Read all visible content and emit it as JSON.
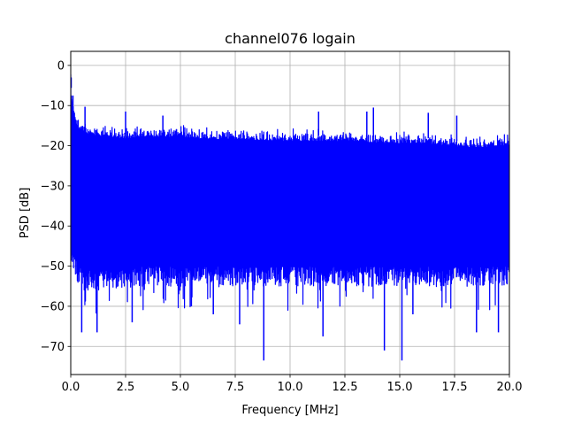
{
  "chart_data": {
    "type": "line",
    "title": "channel076 logain",
    "xlabel": "Frequency [MHz]",
    "ylabel": "PSD [dB]",
    "xlim": [
      0,
      20
    ],
    "ylim": [
      -77,
      3.5
    ],
    "xticks": [
      0,
      2.5,
      5,
      7.5,
      10,
      12.5,
      15,
      17.5,
      20
    ],
    "xtick_labels": [
      "0.0",
      "2.5",
      "5.0",
      "7.5",
      "10.0",
      "12.5",
      "15.0",
      "17.5",
      "20.0"
    ],
    "yticks": [
      0,
      -10,
      -20,
      -30,
      -40,
      -50,
      -60,
      -70
    ],
    "ytick_labels": [
      "0",
      "−10",
      "−20",
      "−30",
      "−40",
      "−50",
      "−60",
      "−70"
    ],
    "grid": true,
    "series": [
      {
        "color": "#0000ff",
        "upper_envelope": {
          "x": [
            0,
            0.05,
            0.1,
            0.2,
            0.3,
            0.5,
            0.7,
            1.0,
            1.5,
            2.0,
            2.5,
            3.0,
            4.0,
            5.0,
            6.0,
            7.0,
            8.0,
            9.0,
            10.0,
            11.0,
            12.0,
            13.0,
            14.0,
            15.0,
            16.0,
            17.0,
            18.0,
            19.0,
            20.0
          ],
          "y": [
            -2,
            -6,
            -8,
            -11,
            -12,
            -13,
            -13.5,
            -14,
            -14.5,
            -14.5,
            -15,
            -14.5,
            -14.5,
            -14.5,
            -15,
            -15,
            -15,
            -15.5,
            -15.5,
            -15.5,
            -15.5,
            -15.5,
            -16,
            -16,
            -16,
            -16.5,
            -17,
            -17,
            -16.5
          ]
        },
        "lower_envelope": {
          "x": [
            0,
            0.1,
            0.3,
            0.5,
            1.0,
            2.0,
            3.0,
            5.0,
            7.5,
            10.0,
            12.5,
            15.0,
            17.5,
            20.0
          ],
          "y": [
            -44,
            -48,
            -50,
            -52,
            -52,
            -52,
            -51,
            -51,
            -51,
            -51,
            -51,
            -51,
            -51,
            -51
          ]
        },
        "peaks": [
          {
            "x": 0.02,
            "y": -3
          },
          {
            "x": 0.1,
            "y": -7.5
          },
          {
            "x": 0.65,
            "y": -10.3
          },
          {
            "x": 2.5,
            "y": -11.5
          },
          {
            "x": 4.2,
            "y": -12.5
          },
          {
            "x": 11.3,
            "y": -11.5
          },
          {
            "x": 13.5,
            "y": -11.5
          },
          {
            "x": 13.8,
            "y": -10.5
          },
          {
            "x": 16.3,
            "y": -11.8
          },
          {
            "x": 17.6,
            "y": -12.5
          }
        ],
        "dips": [
          {
            "x": 0.5,
            "y": -66.5
          },
          {
            "x": 1.2,
            "y": -66.5
          },
          {
            "x": 2.8,
            "y": -64
          },
          {
            "x": 5.5,
            "y": -60
          },
          {
            "x": 6.5,
            "y": -62
          },
          {
            "x": 7.7,
            "y": -64.5
          },
          {
            "x": 8.8,
            "y": -73.5
          },
          {
            "x": 11.5,
            "y": -67.5
          },
          {
            "x": 14.3,
            "y": -71
          },
          {
            "x": 15.1,
            "y": -73.5
          },
          {
            "x": 15.6,
            "y": -62
          },
          {
            "x": 18.5,
            "y": -66.5
          },
          {
            "x": 19.5,
            "y": -66.5
          }
        ]
      }
    ]
  }
}
